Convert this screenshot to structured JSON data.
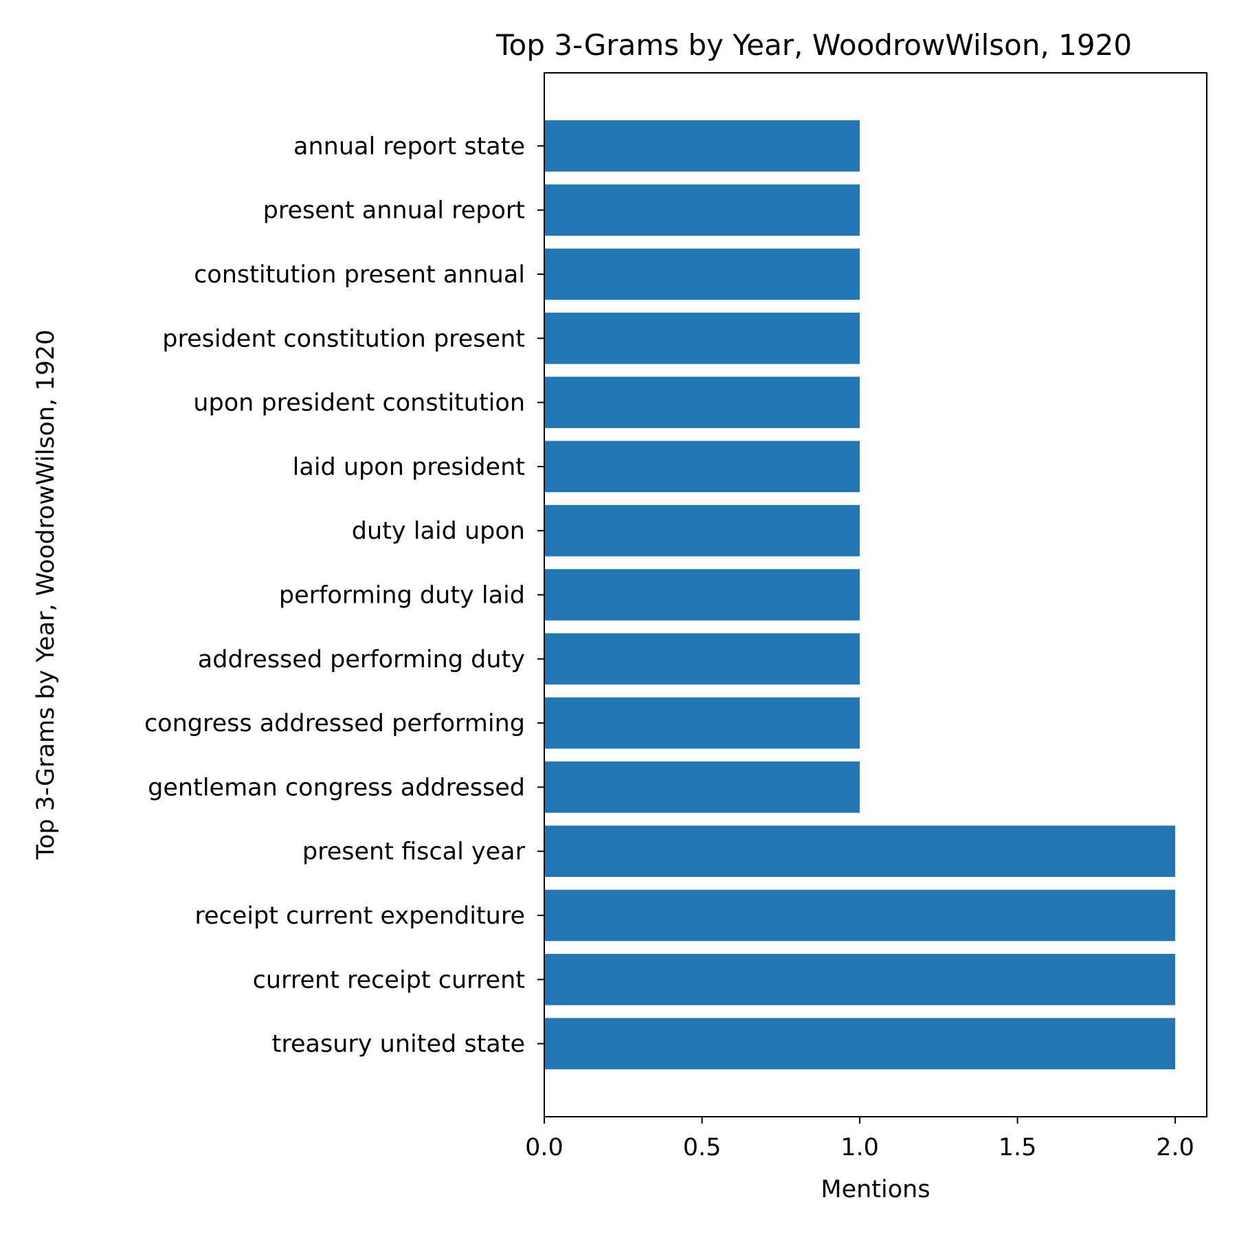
{
  "chart_data": {
    "type": "bar",
    "orientation": "horizontal",
    "title": "Top 3-Grams by Year, WoodrowWilson, 1920",
    "xlabel": "Mentions",
    "ylabel": "Top 3-Grams by Year, WoodrowWilson, 1920",
    "xlim": [
      0,
      2.1
    ],
    "xticks": [
      "0.0",
      "0.5",
      "1.0",
      "1.5",
      "2.0"
    ],
    "xtick_values": [
      0,
      0.5,
      1.0,
      1.5,
      2.0
    ],
    "grid": false,
    "legend": "none",
    "bar_color": "#2077b4",
    "categories": [
      "treasury united state",
      "current receipt current",
      "receipt current expenditure",
      "present fiscal year",
      "gentleman congress addressed",
      "congress addressed performing",
      "addressed performing duty",
      "performing duty laid",
      "duty laid upon",
      "laid upon president",
      "upon president constitution",
      "president constitution present",
      "constitution present annual",
      "present annual report",
      "annual report state"
    ],
    "values": [
      2,
      2,
      2,
      2,
      1,
      1,
      1,
      1,
      1,
      1,
      1,
      1,
      1,
      1,
      1
    ]
  }
}
